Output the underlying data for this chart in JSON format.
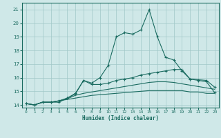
{
  "title": "",
  "xlabel": "Humidex (Indice chaleur)",
  "x_values": [
    0,
    1,
    2,
    3,
    4,
    5,
    6,
    7,
    8,
    9,
    10,
    11,
    12,
    13,
    14,
    15,
    16,
    17,
    18,
    19,
    20,
    21,
    22,
    23
  ],
  "series1": [
    14.1,
    14.0,
    14.2,
    14.2,
    14.2,
    14.5,
    14.8,
    15.8,
    15.6,
    16.0,
    16.9,
    19.0,
    19.3,
    19.2,
    19.5,
    21.0,
    19.0,
    17.5,
    17.3,
    16.5,
    15.9,
    15.8,
    15.7,
    14.9
  ],
  "series2": [
    14.1,
    14.0,
    14.2,
    14.2,
    14.3,
    14.5,
    14.85,
    15.8,
    15.5,
    15.5,
    15.6,
    15.8,
    15.9,
    16.0,
    16.2,
    16.3,
    16.4,
    16.5,
    16.6,
    16.6,
    15.9,
    15.85,
    15.8,
    15.3
  ],
  "series3": [
    14.1,
    14.0,
    14.2,
    14.2,
    14.3,
    14.45,
    14.7,
    14.85,
    14.95,
    15.05,
    15.15,
    15.25,
    15.35,
    15.45,
    15.55,
    15.65,
    15.7,
    15.7,
    15.65,
    15.55,
    15.45,
    15.35,
    15.25,
    15.15
  ],
  "series4": [
    14.1,
    14.0,
    14.2,
    14.2,
    14.3,
    14.4,
    14.5,
    14.6,
    14.7,
    14.75,
    14.8,
    14.85,
    14.9,
    14.95,
    15.0,
    15.05,
    15.05,
    15.05,
    15.05,
    15.05,
    14.95,
    14.95,
    14.85,
    14.85
  ],
  "line_color": "#1a6b60",
  "bg_color": "#cfe8e8",
  "grid_color": "#a0c8c8",
  "ylim": [
    13.8,
    21.5
  ],
  "yticks": [
    14,
    15,
    16,
    17,
    18,
    19,
    20,
    21
  ],
  "xticks": [
    0,
    1,
    2,
    3,
    4,
    5,
    6,
    7,
    8,
    9,
    10,
    11,
    12,
    13,
    14,
    15,
    16,
    17,
    18,
    19,
    20,
    21,
    22,
    23
  ]
}
